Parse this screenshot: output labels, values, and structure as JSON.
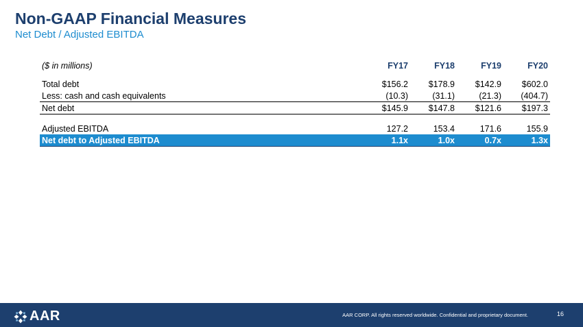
{
  "header": {
    "title": "Non-GAAP Financial Measures",
    "subtitle": "Net Debt / Adjusted EBITDA"
  },
  "table": {
    "units": "($ in millions)",
    "columns": [
      "FY17",
      "FY18",
      "FY19",
      "FY20"
    ],
    "rows": [
      {
        "label": "Total debt",
        "values": [
          "$156.2",
          "$178.9",
          "$142.9",
          "$602.0"
        ]
      },
      {
        "label": "Less: cash and cash equivalents",
        "values": [
          "(10.3)",
          "(31.1)",
          "(21.3)",
          "(404.7)"
        ]
      },
      {
        "label": "Net debt",
        "values": [
          "$145.9",
          "$147.8",
          "$121.6",
          "$197.3"
        ]
      },
      {
        "label": "Adjusted EBITDA",
        "values": [
          "127.2",
          "153.4",
          "171.6",
          "155.9"
        ]
      },
      {
        "label": "Net debt to Adjusted EBITDA",
        "values": [
          "1.1x",
          "1.0x",
          "0.7x",
          "1.3x"
        ]
      }
    ]
  },
  "footer": {
    "logo_text": "AAR",
    "logo_icon": "aar-logo-icon",
    "copyright": "AAR CORP. All rights reserved worldwide. Confidential and proprietary document.",
    "page_number": "16"
  },
  "colors": {
    "title": "#1d3f6e",
    "accent": "#1d8ccf",
    "footer_bg": "#1d3f6e"
  }
}
